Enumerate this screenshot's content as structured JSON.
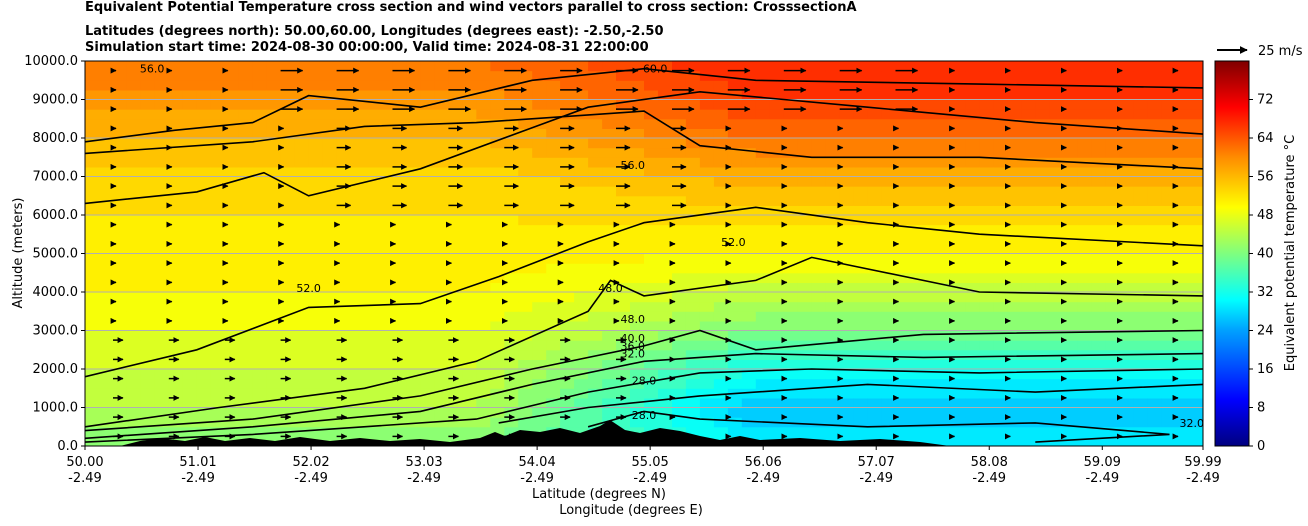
{
  "chart_data": {
    "type": "heatmap",
    "title_lines": [
      "Equivalent Potential Temperature cross section and wind vectors parallel to cross section: CrosssectionA",
      "Latitudes (degrees north): 50.00,60.00, Longitudes (degrees east): -2.50,-2.50",
      "Simulation start time: 2024-08-30 00:00:00, Valid time: 2024-08-31 22:00:00"
    ],
    "ylabel": "Altitude (meters)",
    "xlabel_lat": "Latitude (degrees N)",
    "xlabel_lon": "Longitude (degrees E)",
    "ylim": [
      0,
      10000
    ],
    "yticks": [
      "0.0",
      "1000.0",
      "2000.0",
      "3000.0",
      "4000.0",
      "5000.0",
      "6000.0",
      "7000.0",
      "8000.0",
      "9000.0",
      "10000.0"
    ],
    "xlim": [
      50.0,
      59.99
    ],
    "xticks_lat": [
      "50.00",
      "51.01",
      "52.02",
      "53.03",
      "54.04",
      "55.05",
      "56.06",
      "57.07",
      "58.08",
      "59.09",
      "59.99"
    ],
    "xticks_lon": [
      "-2.49",
      "-2.49",
      "-2.49",
      "-2.49",
      "-2.49",
      "-2.49",
      "-2.49",
      "-2.49",
      "-2.49",
      "-2.49",
      "-2.49"
    ],
    "colorbar": {
      "label": "Equivalent potential temperature °C",
      "range": [
        0,
        80
      ],
      "ticks": [
        "0",
        "8",
        "16",
        "24",
        "32",
        "40",
        "48",
        "56",
        "64",
        "72"
      ]
    },
    "quiver_key": "25 m/s",
    "contour_labels": [
      "60.0",
      "56.0",
      "52.0",
      "52.0",
      "48.0",
      "48.0",
      "40.0",
      "36.0",
      "32.0",
      "28.0",
      "28.0",
      "32.0",
      "56.0"
    ],
    "contour_levels": [
      28,
      32,
      36,
      40,
      48,
      52,
      56,
      60
    ],
    "theta_e_profile": {
      "altitude_m": [
        0,
        1000,
        2000,
        3000,
        4000,
        5000,
        6000,
        7000,
        8000,
        9000,
        10000
      ],
      "south_50N": [
        40,
        44,
        46,
        48,
        50,
        51,
        52,
        53,
        56,
        59,
        62
      ],
      "north_60N": [
        30,
        26,
        32,
        40,
        45,
        50,
        53,
        57,
        62,
        66,
        68
      ]
    }
  }
}
